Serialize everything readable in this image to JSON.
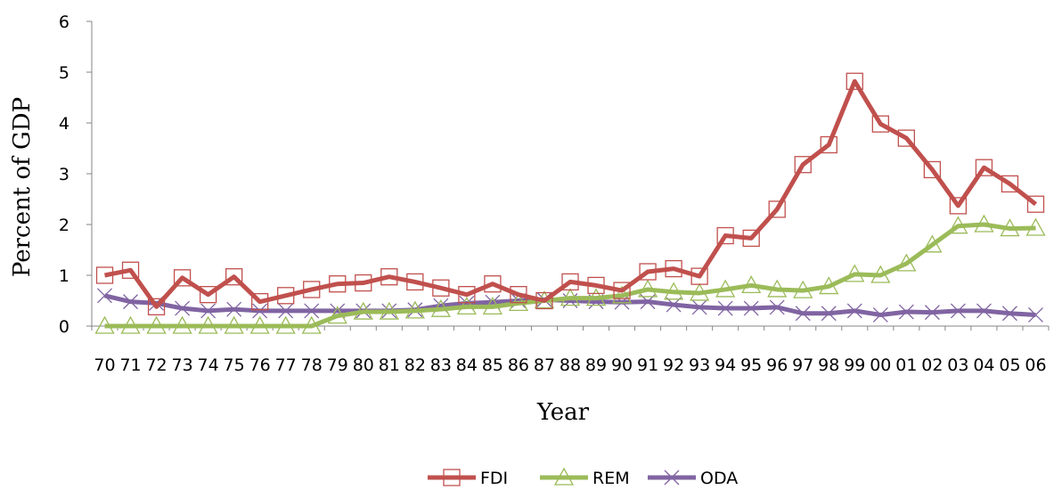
{
  "chart_data": {
    "type": "line",
    "xlabel": "Year",
    "ylabel": "Percent of GDP",
    "ylim": [
      0,
      6
    ],
    "yticks": [
      "0",
      "1",
      "2",
      "3",
      "4",
      "5",
      "6"
    ],
    "categories": [
      "70",
      "71",
      "72",
      "73",
      "74",
      "75",
      "76",
      "77",
      "78",
      "79",
      "80",
      "81",
      "82",
      "83",
      "84",
      "85",
      "86",
      "87",
      "88",
      "89",
      "90",
      "91",
      "92",
      "93",
      "94",
      "95",
      "96",
      "97",
      "98",
      "99",
      "00",
      "01",
      "02",
      "03",
      "04",
      "05",
      "06"
    ],
    "legend_position": "bottom",
    "grid": false,
    "series": [
      {
        "name": "FDI",
        "color": "#C0504D",
        "marker": "square",
        "values": [
          1.0,
          1.1,
          0.38,
          0.95,
          0.62,
          0.97,
          0.48,
          0.6,
          0.72,
          0.83,
          0.85,
          0.97,
          0.87,
          0.75,
          0.62,
          0.83,
          0.62,
          0.5,
          0.87,
          0.8,
          0.7,
          1.07,
          1.13,
          0.98,
          1.78,
          1.73,
          2.3,
          3.18,
          3.57,
          4.82,
          3.98,
          3.7,
          3.08,
          2.37,
          3.12,
          2.8,
          2.4
        ]
      },
      {
        "name": "REM",
        "color": "#9BBB59",
        "marker": "triangle",
        "values": [
          0.0,
          0.0,
          0.0,
          0.0,
          0.0,
          0.0,
          0.0,
          0.0,
          0.0,
          0.2,
          0.28,
          0.28,
          0.3,
          0.33,
          0.38,
          0.38,
          0.45,
          0.5,
          0.55,
          0.55,
          0.6,
          0.72,
          0.67,
          0.65,
          0.72,
          0.8,
          0.72,
          0.7,
          0.78,
          1.02,
          1.0,
          1.23,
          1.6,
          1.97,
          2.0,
          1.92,
          1.93
        ]
      },
      {
        "name": "ODA",
        "color": "#8064A2",
        "marker": "x",
        "values": [
          0.6,
          0.48,
          0.45,
          0.35,
          0.3,
          0.33,
          0.3,
          0.3,
          0.3,
          0.3,
          0.3,
          0.3,
          0.32,
          0.4,
          0.45,
          0.47,
          0.5,
          0.52,
          0.5,
          0.48,
          0.47,
          0.48,
          0.42,
          0.37,
          0.35,
          0.35,
          0.37,
          0.25,
          0.25,
          0.3,
          0.22,
          0.28,
          0.27,
          0.3,
          0.3,
          0.25,
          0.22
        ]
      }
    ]
  }
}
